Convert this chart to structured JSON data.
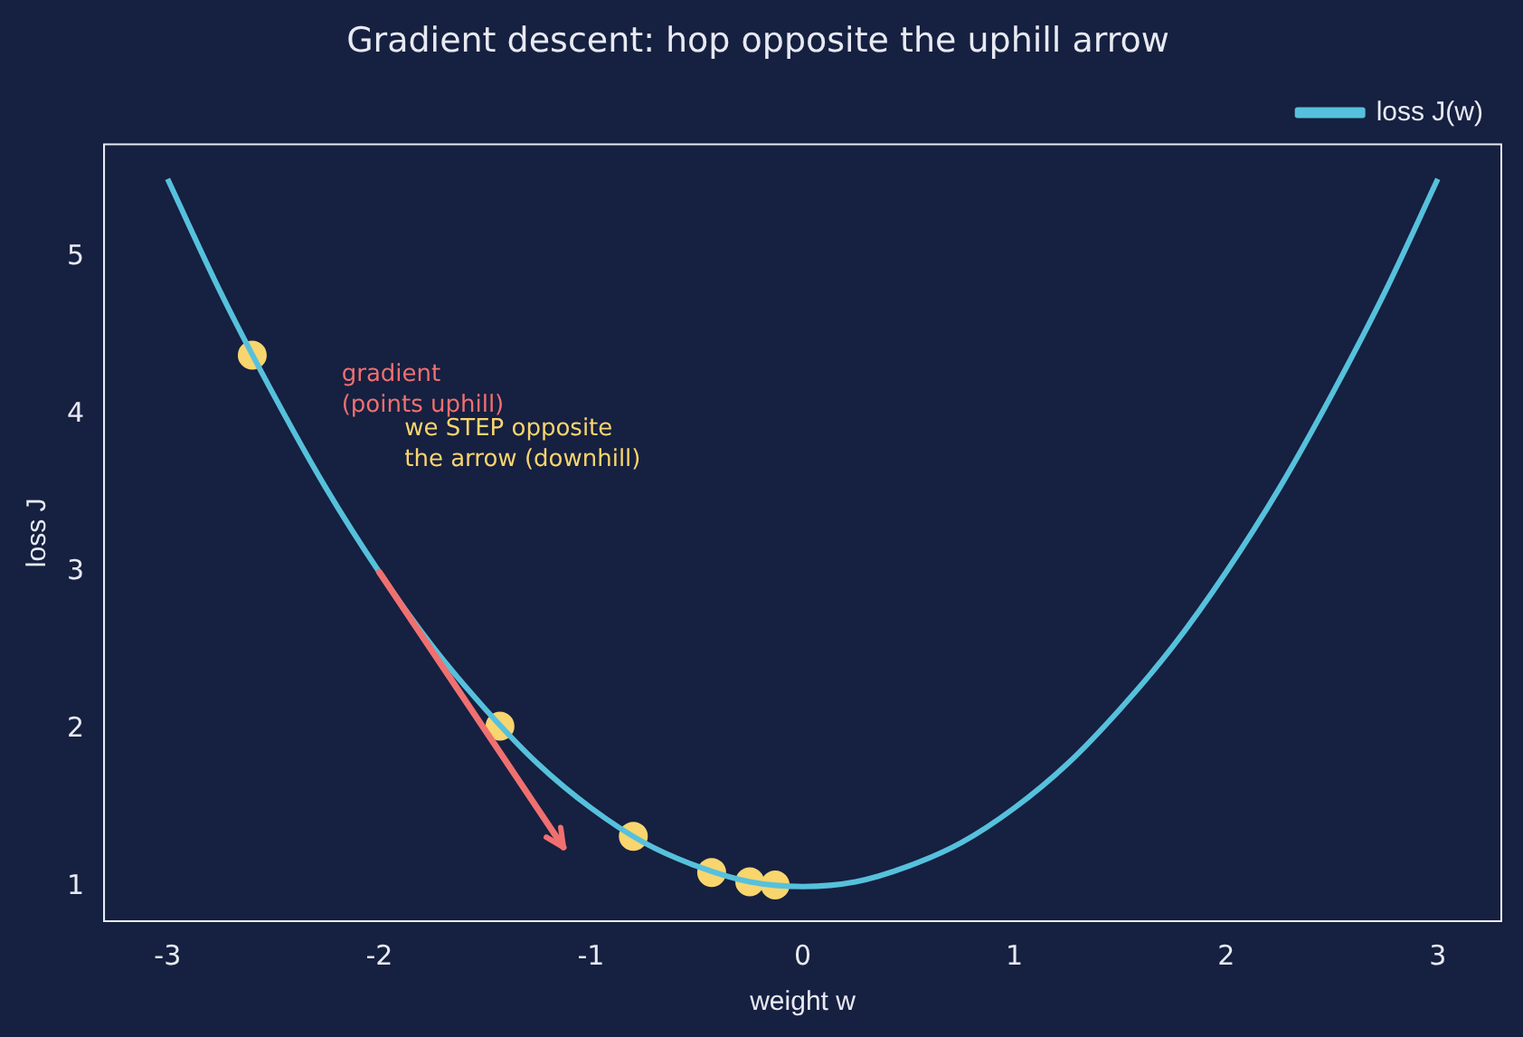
{
  "chart_data": {
    "type": "line",
    "title": "Gradient descent: hop opposite the uphill arrow",
    "xlabel": "weight w",
    "ylabel": "loss J",
    "series": [
      {
        "name": "loss J(w)",
        "color": "#56c1dc",
        "x": [
          -3,
          -2.75,
          -2.5,
          -2.25,
          -2,
          -1.75,
          -1.5,
          -1.25,
          -1,
          -0.75,
          -0.5,
          -0.25,
          0,
          0.25,
          0.5,
          0.75,
          1,
          1.25,
          1.5,
          1.75,
          2,
          2.25,
          2.5,
          2.75,
          3
        ],
        "values": [
          5.5,
          4.78,
          4.13,
          3.53,
          3,
          2.53,
          2.13,
          1.78,
          1.5,
          1.28,
          1.13,
          1.03,
          1,
          1.03,
          1.13,
          1.28,
          1.5,
          1.78,
          2.13,
          2.53,
          3,
          3.53,
          4.13,
          4.78,
          5.5
        ]
      },
      {
        "type": "scatter",
        "marker": "circle",
        "color": "#f9d56e",
        "x": [
          -2.6,
          -1.43,
          -0.8,
          -0.43,
          -0.25,
          -0.13
        ],
        "values": [
          4.38,
          2.02,
          1.32,
          1.09,
          1.03,
          1.01
        ]
      }
    ],
    "annotations": [
      "gradient\n(points uphill)",
      "we STEP opposite\nthe arrow (downhill)"
    ],
    "xlim": [
      -3.3,
      3.3
    ],
    "ylim": [
      0.78,
      5.72
    ],
    "xticks": [
      -3,
      -2,
      -1,
      0,
      1,
      2,
      3
    ],
    "yticks": [
      1,
      2,
      3,
      4,
      5
    ],
    "grid": false,
    "legend": "top right",
    "line_style": "solid"
  }
}
